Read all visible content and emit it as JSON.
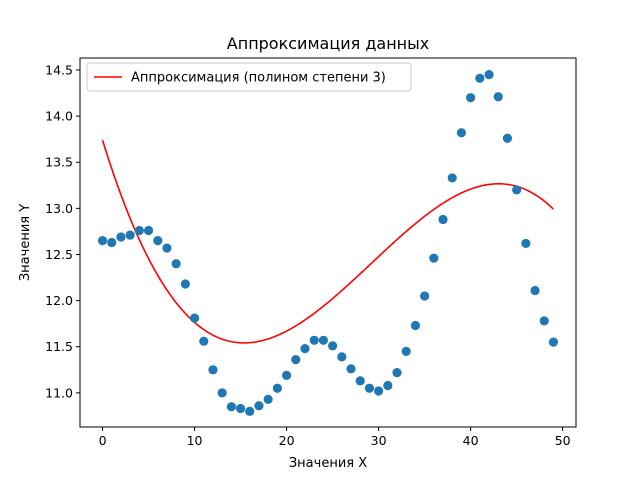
{
  "chart_data": {
    "type": "scatter",
    "title": "Аппроксимация данных",
    "xlabel": "Значения X",
    "ylabel": "Значения Y",
    "xlim": [
      -2.45,
      51.45
    ],
    "ylim": [
      10.63,
      14.63
    ],
    "x_ticks": [
      0,
      10,
      20,
      30,
      40,
      50
    ],
    "y_ticks": [
      11.0,
      11.5,
      12.0,
      12.5,
      13.0,
      13.5,
      14.0,
      14.5
    ],
    "y_tick_labels": [
      "11.0",
      "11.5",
      "12.0",
      "12.5",
      "13.0",
      "13.5",
      "14.0",
      "14.5"
    ],
    "grid": false,
    "legend_position": "top-left",
    "series": [
      {
        "kind": "scatter",
        "color": "#1f77b4",
        "x": [
          0,
          1,
          2,
          3,
          4,
          5,
          6,
          7,
          8,
          9,
          10,
          11,
          12,
          13,
          14,
          15,
          16,
          17,
          18,
          19,
          20,
          21,
          22,
          23,
          24,
          25,
          26,
          27,
          28,
          29,
          30,
          31,
          32,
          33,
          34,
          35,
          36,
          37,
          38,
          39,
          40,
          41,
          42,
          43,
          44,
          45,
          46,
          47,
          48,
          49
        ],
        "y": [
          12.65,
          12.63,
          12.69,
          12.71,
          12.76,
          12.76,
          12.65,
          12.57,
          12.4,
          12.18,
          11.81,
          11.56,
          11.25,
          11.0,
          10.85,
          10.83,
          10.8,
          10.86,
          10.93,
          11.05,
          11.19,
          11.36,
          11.48,
          11.57,
          11.57,
          11.51,
          11.39,
          11.26,
          11.13,
          11.05,
          11.02,
          11.08,
          11.22,
          11.45,
          11.73,
          12.05,
          12.46,
          12.88,
          13.33,
          13.82,
          14.2,
          14.41,
          14.45,
          14.21,
          13.76,
          13.2,
          12.62,
          12.11,
          11.78,
          11.55
        ]
      },
      {
        "kind": "line",
        "name": "Аппроксимация (полином степени 3)",
        "color": "#ff0000",
        "poly_coefficients": [
          13.74,
          -0.3244,
          0.01431,
          -0.0001633
        ],
        "x_range": [
          0,
          49
        ]
      }
    ]
  }
}
